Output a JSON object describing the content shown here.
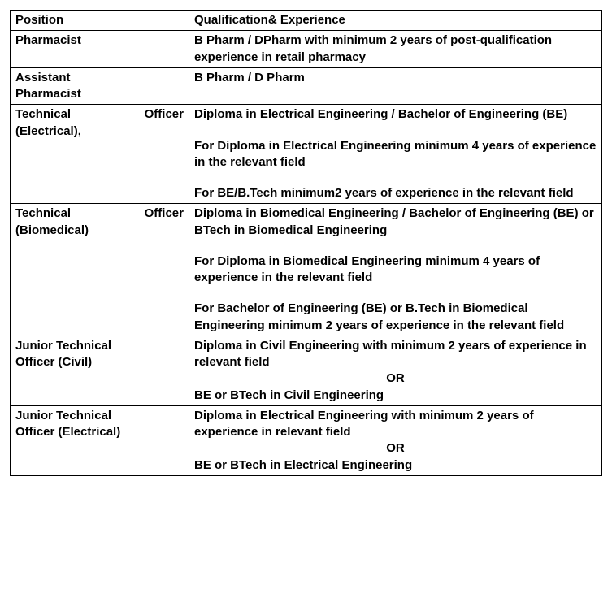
{
  "headers": {
    "position": "Position",
    "qualification": "Qualification& Experience"
  },
  "rows": [
    {
      "position_line1_left": "Pharmacist",
      "qual_l1": "B Pharm / DPharm with minimum 2 years of post-qualification experience in retail pharmacy"
    },
    {
      "position_line1_left": "Assistant",
      "position_line2_left": "Pharmacist",
      "qual_l1": "B Pharm / D Pharm"
    },
    {
      "position_line1_left": "Technical",
      "position_line1_right": "Officer",
      "position_line2_left": "(Electrical),",
      "qual_l1": "Diploma in Electrical Engineering / Bachelor of Engineering (BE)",
      "qual_l2": "For Diploma in Electrical Engineering minimum 4 years of experience in the relevant field",
      "qual_l3": "For BE/B.Tech minimum2 years of experience in the relevant field"
    },
    {
      "position_line1_left": "Technical",
      "position_line1_right": "Officer",
      "position_line2_left": "(Biomedical)",
      "qual_l1": "Diploma in Biomedical Engineering / Bachelor of Engineering (BE) or BTech in Biomedical Engineering",
      "qual_l2": "For Diploma in Biomedical Engineering minimum 4 years of experience in the relevant field",
      "qual_l3": "For Bachelor of Engineering (BE) or B.Tech in Biomedical Engineering minimum 2 years of experience in the relevant field"
    },
    {
      "position_line1_left": "Junior Technical",
      "position_line2_left": "Officer (Civil)",
      "qual_l1": "Diploma in Civil Engineering with minimum 2 years of experience in relevant field",
      "or_text": "OR",
      "qual_l2": "BE or BTech in Civil Engineering"
    },
    {
      "position_line1_left": "Junior Technical",
      "position_line2_left": "Officer (Electrical)",
      "qual_l1": "Diploma in Electrical Engineering with minimum 2 years of experience in relevant field",
      "or_text": "OR",
      "qual_l2": " BE or BTech in Electrical Engineering"
    }
  ]
}
